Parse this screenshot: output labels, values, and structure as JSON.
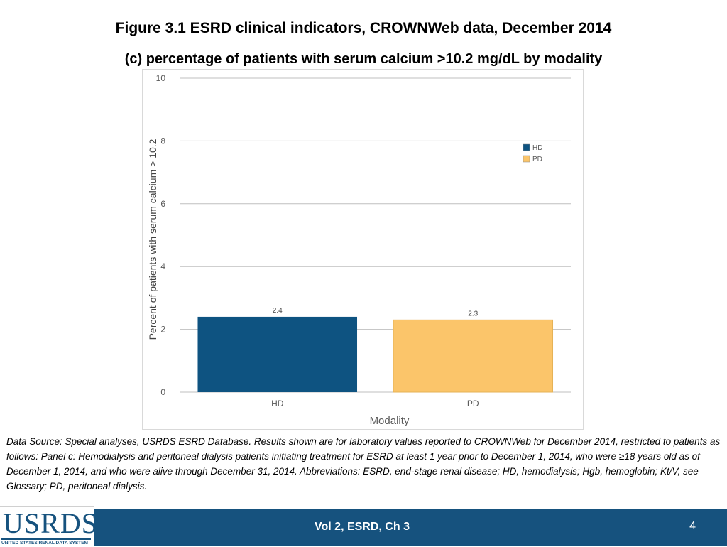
{
  "header": {
    "title": "Figure 3.1 ESRD clinical indicators, CROWNWeb data, December 2014",
    "subtitle": "(c) percentage of patients with serum calcium >10.2 mg/dL by modality"
  },
  "chart_data": {
    "type": "bar",
    "categories": [
      "HD",
      "PD"
    ],
    "values": [
      2.4,
      2.3
    ],
    "data_labels": [
      "2.4",
      "2.3"
    ],
    "colors": [
      "#0e5381",
      "#fbc56a"
    ],
    "xlabel": "Modality",
    "ylabel": "Percent of patients with serum calcium > 10.2",
    "ylim": [
      0,
      10
    ],
    "yticks": [
      0,
      2,
      4,
      6,
      8,
      10
    ],
    "grid": true,
    "legend": {
      "placement": "top-right",
      "entries": [
        {
          "label": "HD",
          "color": "#0e5381"
        },
        {
          "label": "PD",
          "color": "#fbc56a"
        }
      ]
    }
  },
  "footnote": "Data Source: Special analyses, USRDS ESRD Database. Results shown are for laboratory values reported to CROWNWeb for December 2014, restricted to patients as follows: Panel c: Hemodialysis and peritoneal dialysis patients initiating treatment for ESRD at least 1 year prior to December 1, 2014, who were ≥18 years old as of December 1, 2014, and who were alive through December 31, 2014. Abbreviations: ESRD, end-stage renal disease; HD, hemodialysis; Hgb, hemoglobin; Kt/V, see Glossary; PD, peritoneal dialysis.",
  "footer": {
    "logo_text": "USRDS",
    "logo_subtitle": "UNITED STATES RENAL DATA SYSTEM",
    "center_text": "Vol 2, ESRD, Ch 3",
    "page_number": "4",
    "bar_color": "#16527e"
  }
}
